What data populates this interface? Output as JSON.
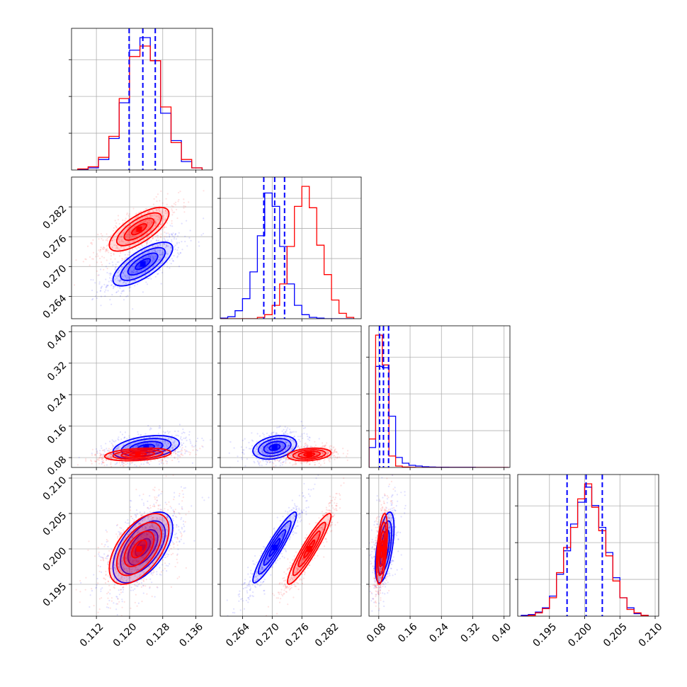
{
  "chart_data": {
    "type": "corner",
    "grid": true,
    "parameters": 4,
    "colors": {
      "blue": "#0000ff",
      "red": "#ff0000"
    },
    "ranges": [
      [
        0.106,
        0.14
      ],
      [
        0.2595,
        0.288
      ],
      [
        0.055,
        0.415
      ],
      [
        0.1905,
        0.2105
      ]
    ],
    "ticks": [
      {
        "values": [
          0.112,
          0.12,
          0.128,
          0.136
        ],
        "labels": [
          "0.112",
          "0.120",
          "0.128",
          "0.136"
        ]
      },
      {
        "values": [
          0.264,
          0.27,
          0.276,
          0.282
        ],
        "labels": [
          "0.264",
          "0.270",
          "0.276",
          "0.282"
        ]
      },
      {
        "values": [
          0.08,
          0.16,
          0.24,
          0.32,
          0.4
        ],
        "labels": [
          "0.08",
          "0.16",
          "0.24",
          "0.32",
          "0.40"
        ]
      },
      {
        "values": [
          0.195,
          0.2,
          0.205,
          0.21
        ],
        "labels": [
          "0.195",
          "0.200",
          "0.205",
          "0.210"
        ]
      }
    ],
    "quantiles": [
      [
        0.1199,
        0.1232,
        0.1262
      ],
      [
        0.2683,
        0.2705,
        0.2725
      ],
      [
        0.082,
        0.092,
        0.105
      ],
      [
        0.1975,
        0.2002,
        0.2025
      ]
    ],
    "histograms": [
      {
        "bin_edges": [
          0.1075,
          0.11,
          0.1125,
          0.115,
          0.1175,
          0.12,
          0.1225,
          0.125,
          0.1275,
          0.13,
          0.1325,
          0.135,
          0.1375
        ],
        "series": [
          {
            "name": "blue",
            "values": [
              0.2,
              1.0,
              5.0,
              15.0,
              32.0,
              57.0,
              63.0,
              52.0,
              27.0,
              14.0,
              4.0,
              1.0
            ]
          },
          {
            "name": "red",
            "values": [
              0.5,
              1.5,
              6.0,
              16.0,
              34.0,
              54.0,
              59.0,
              52.0,
              30.0,
              13.0,
              5.0,
              1.0
            ]
          }
        ]
      },
      {
        "bin_edges": [
          0.2595,
          0.261,
          0.2625,
          0.264,
          0.2655,
          0.267,
          0.2685,
          0.27,
          0.2715,
          0.273,
          0.2745,
          0.276,
          0.2775,
          0.279,
          0.2805,
          0.282,
          0.2835,
          0.285,
          0.2865
        ],
        "series": [
          {
            "name": "blue",
            "values": [
              0.5,
              1.5,
              6.0,
              15.0,
              35.0,
              62.0,
              94.0,
              84.0,
              54.0,
              26.0,
              10.0,
              3.0,
              1.0,
              0.5,
              0.0,
              0.0,
              0.0,
              0.0
            ]
          },
          {
            "name": "red",
            "values": [
              0.0,
              0.0,
              0.0,
              0.0,
              0.0,
              1.0,
              3.0,
              10.0,
              26.0,
              54.0,
              84.0,
              99.0,
              83.0,
              55.0,
              33.0,
              14.0,
              4.0,
              1.0
            ]
          }
        ]
      },
      {
        "bin_edges": [
          0.055,
          0.072,
          0.089,
          0.106,
          0.123,
          0.14,
          0.157,
          0.174,
          0.191,
          0.208,
          0.225,
          0.242,
          0.259,
          0.276,
          0.293,
          0.31,
          0.327,
          0.344,
          0.361,
          0.378,
          0.395,
          0.412
        ],
        "series": [
          {
            "name": "blue",
            "values": [
              14.0,
              71.0,
              70.0,
              36.0,
              7.0,
              3.0,
              1.5,
              1.0,
              0.5,
              0.3,
              0.2,
              0.2,
              0.1,
              0.1,
              0.1,
              0.1,
              0.0,
              0.0,
              0.0,
              0.0,
              0.0
            ]
          },
          {
            "name": "red",
            "values": [
              20.0,
              93.0,
              72.0,
              8.0,
              1.0,
              0.3,
              0.1,
              0.0,
              0.0,
              0.0,
              0.0,
              0.0,
              0.0,
              0.0,
              0.0,
              0.0,
              0.0,
              0.0,
              0.0,
              0.0,
              0.0
            ]
          }
        ]
      },
      {
        "bin_edges": [
          0.191,
          0.192,
          0.193,
          0.194,
          0.195,
          0.196,
          0.197,
          0.198,
          0.199,
          0.2,
          0.201,
          0.202,
          0.203,
          0.204,
          0.205,
          0.206,
          0.207,
          0.208,
          0.209
        ],
        "series": [
          {
            "name": "blue",
            "values": [
              0.5,
              1.0,
              2.5,
              5.0,
              12.0,
              25.0,
              39.0,
              55.0,
              68.0,
              77.0,
              66.0,
              53.0,
              38.0,
              23.0,
              11.0,
              5.0,
              1.5,
              0.5
            ]
          },
          {
            "name": "red",
            "values": [
              0.0,
              0.5,
              2.0,
              4.5,
              11.0,
              26.0,
              41.0,
              53.0,
              70.0,
              79.0,
              65.0,
              51.0,
              36.0,
              21.0,
              11.0,
              4.0,
              2.0,
              0.5
            ]
          }
        ]
      }
    ],
    "pairs": [
      {
        "row": 1,
        "col": 0,
        "blue": {
          "center": [
            0.1232,
            0.2705
          ],
          "sigma": [
            0.0036,
            0.0022
          ],
          "rho": 0.72,
          "n": 650
        },
        "red": {
          "center": [
            0.1223,
            0.2775
          ],
          "sigma": [
            0.0036,
            0.0022
          ],
          "rho": 0.72,
          "n": 650
        }
      },
      {
        "row": 2,
        "col": 0,
        "blue": {
          "center": [
            0.124,
            0.106
          ],
          "sigma": [
            0.004,
            0.015
          ],
          "rho": 0.35,
          "n": 550
        },
        "red": {
          "center": [
            0.122,
            0.088
          ],
          "sigma": [
            0.004,
            0.008
          ],
          "rho": 0.3,
          "n": 550
        }
      },
      {
        "row": 2,
        "col": 1,
        "blue": {
          "center": [
            0.2705,
            0.106
          ],
          "sigma": [
            0.0022,
            0.015
          ],
          "rho": 0.3,
          "n": 550
        },
        "red": {
          "center": [
            0.2775,
            0.088
          ],
          "sigma": [
            0.0022,
            0.008
          ],
          "rho": 0.25,
          "n": 550
        }
      },
      {
        "row": 3,
        "col": 0,
        "blue": {
          "center": [
            0.1232,
            0.2002
          ],
          "sigma": [
            0.0036,
            0.0025
          ],
          "rho": 0.55,
          "n": 650
        },
        "red": {
          "center": [
            0.1223,
            0.2
          ],
          "sigma": [
            0.0036,
            0.0025
          ],
          "rho": 0.55,
          "n": 650
        }
      },
      {
        "row": 3,
        "col": 1,
        "blue": {
          "center": [
            0.2705,
            0.2002
          ],
          "sigma": [
            0.0022,
            0.0025
          ],
          "rho": 0.93,
          "n": 650
        },
        "red": {
          "center": [
            0.2775,
            0.2
          ],
          "sigma": [
            0.0022,
            0.0025
          ],
          "rho": 0.93,
          "n": 650
        }
      },
      {
        "row": 3,
        "col": 2,
        "blue": {
          "center": [
            0.095,
            0.2002
          ],
          "sigma": [
            0.012,
            0.0025
          ],
          "rho": 0.55,
          "n": 550
        },
        "red": {
          "center": [
            0.088,
            0.2
          ],
          "sigma": [
            0.007,
            0.0025
          ],
          "rho": 0.5,
          "n": 550
        }
      }
    ]
  }
}
